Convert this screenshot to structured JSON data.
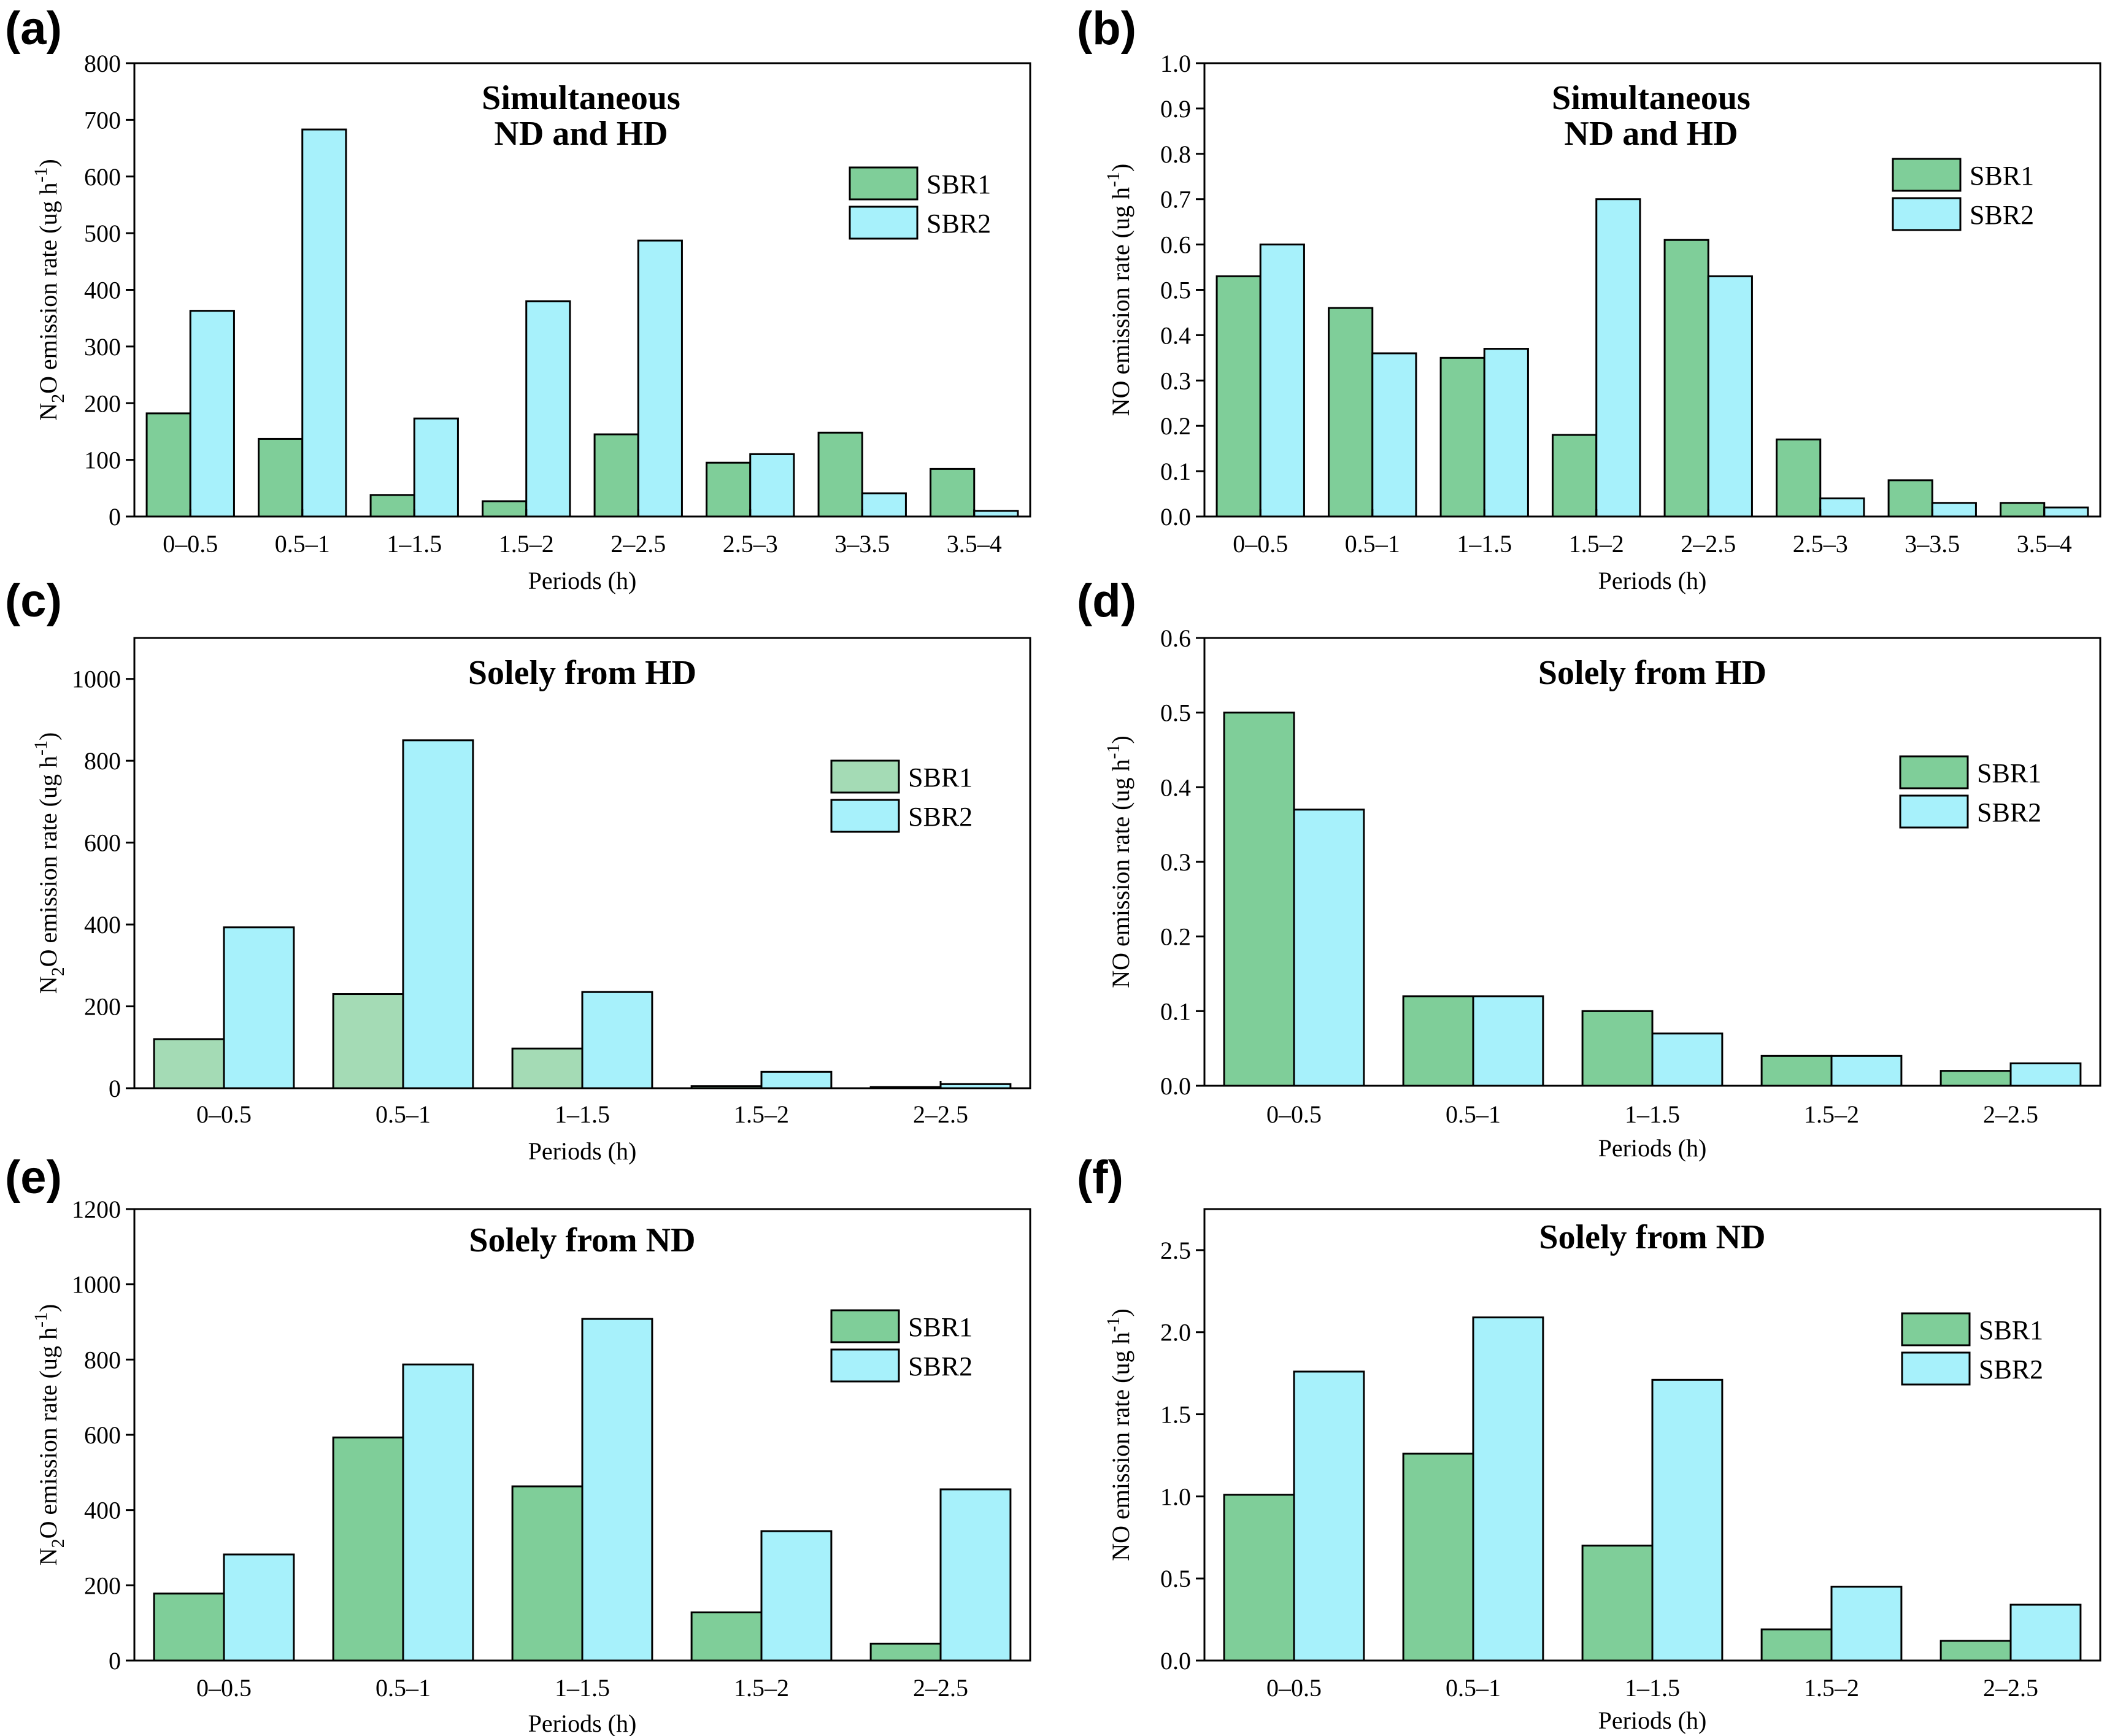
{
  "colors": {
    "SBR1": "#7fce99",
    "SBR2": "#a7f1fb",
    "SBR1_light": "#a4dbb5"
  },
  "legend": [
    "SBR1",
    "SBR2"
  ],
  "chart_data": [
    {
      "panel": "(a)",
      "type": "bar",
      "title": [
        "Simultaneous",
        "ND and HD"
      ],
      "xlabel": "Periods (h)",
      "ylabel_prefix": "N",
      "ylabel_sub": "2",
      "ylabel_mid": "O emission rate (ug h",
      "ylabel_sup": "-1",
      "ylabel_end": ")",
      "categories": [
        "0–0.5",
        "0.5–1",
        "1–1.5",
        "1.5–2",
        "2–2.5",
        "2.5–3",
        "3–3.5",
        "3.5–4"
      ],
      "ylim": [
        0,
        800
      ],
      "yticks": [
        "0",
        "100",
        "200",
        "300",
        "400",
        "500",
        "600",
        "700",
        "800"
      ],
      "series": [
        {
          "name": "SBR1",
          "values": [
            182,
            137,
            38,
            27,
            145,
            95,
            148,
            84
          ]
        },
        {
          "name": "SBR2",
          "values": [
            363,
            683,
            173,
            380,
            487,
            110,
            41,
            10
          ]
        }
      ]
    },
    {
      "panel": "(b)",
      "type": "bar",
      "title": [
        "Simultaneous",
        "ND and HD"
      ],
      "xlabel": "Periods (h)",
      "ylabel_prefix": "",
      "ylabel_sub": "",
      "ylabel_mid": "NO emission rate (ug h",
      "ylabel_sup": "-1",
      "ylabel_end": ")",
      "categories": [
        "0–0.5",
        "0.5–1",
        "1–1.5",
        "1.5–2",
        "2–2.5",
        "2.5–3",
        "3–3.5",
        "3.5–4"
      ],
      "ylim": [
        0,
        1.0
      ],
      "yticks": [
        "0.0",
        "0.1",
        "0.2",
        "0.3",
        "0.4",
        "0.5",
        "0.6",
        "0.7",
        "0.8",
        "0.9",
        "1.0"
      ],
      "series": [
        {
          "name": "SBR1",
          "values": [
            0.53,
            0.46,
            0.35,
            0.18,
            0.61,
            0.17,
            0.08,
            0.03
          ]
        },
        {
          "name": "SBR2",
          "values": [
            0.6,
            0.36,
            0.37,
            0.7,
            0.53,
            0.04,
            0.03,
            0.02
          ]
        }
      ]
    },
    {
      "panel": "(c)",
      "type": "bar",
      "title": [
        "Solely from HD"
      ],
      "xlabel": "Periods (h)",
      "ylabel_prefix": "N",
      "ylabel_sub": "2",
      "ylabel_mid": "O emission rate (ug h",
      "ylabel_sup": "-1",
      "ylabel_end": ")",
      "categories": [
        "0–0.5",
        "0.5–1",
        "1–1.5",
        "1.5–2",
        "2–2.5"
      ],
      "ylim": [
        0,
        1100
      ],
      "yticks": [
        "0",
        "200",
        "400",
        "600",
        "800",
        "1000"
      ],
      "ytick_values": [
        0,
        200,
        400,
        600,
        800,
        1000
      ],
      "series": [
        {
          "name": "SBR1",
          "values": [
            120,
            230,
            97,
            5,
            3
          ]
        },
        {
          "name": "SBR2",
          "values": [
            393,
            850,
            235,
            40,
            10
          ]
        }
      ]
    },
    {
      "panel": "(d)",
      "type": "bar",
      "title": [
        "Solely from HD"
      ],
      "xlabel": "Periods (h)",
      "ylabel_prefix": "",
      "ylabel_sub": "",
      "ylabel_mid": "NO emission rate (ug h",
      "ylabel_sup": "-1",
      "ylabel_end": ")",
      "categories": [
        "0–0.5",
        "0.5–1",
        "1–1.5",
        "1.5–2",
        "2–2.5"
      ],
      "ylim": [
        0,
        0.6
      ],
      "yticks": [
        "0.0",
        "0.1",
        "0.2",
        "0.3",
        "0.4",
        "0.5",
        "0.6"
      ],
      "series": [
        {
          "name": "SBR1",
          "values": [
            0.5,
            0.12,
            0.1,
            0.04,
            0.02
          ]
        },
        {
          "name": "SBR2",
          "values": [
            0.37,
            0.12,
            0.07,
            0.04,
            0.03
          ]
        }
      ]
    },
    {
      "panel": "(e)",
      "type": "bar",
      "title": [
        "Solely from ND"
      ],
      "xlabel": "Periods (h)",
      "ylabel_prefix": "N",
      "ylabel_sub": "2",
      "ylabel_mid": "O emission rate (ug h",
      "ylabel_sup": "-1",
      "ylabel_end": ")",
      "categories": [
        "0–0.5",
        "0.5–1",
        "1–1.5",
        "1.5–2",
        "2–2.5"
      ],
      "ylim": [
        0,
        1200
      ],
      "yticks": [
        "0",
        "200",
        "400",
        "600",
        "800",
        "1000",
        "1200"
      ],
      "series": [
        {
          "name": "SBR1",
          "values": [
            178,
            593,
            463,
            128,
            45
          ]
        },
        {
          "name": "SBR2",
          "values": [
            282,
            787,
            908,
            344,
            455
          ]
        }
      ]
    },
    {
      "panel": "(f)",
      "type": "bar",
      "title": [
        "Solely from ND"
      ],
      "xlabel": "Periods (h)",
      "ylabel_prefix": "",
      "ylabel_sub": "",
      "ylabel_mid": "NO emission rate (ug h",
      "ylabel_sup": "-1",
      "ylabel_end": ")",
      "categories": [
        "0–0.5",
        "0.5–1",
        "1–1.5",
        "1.5–2",
        "2–2.5"
      ],
      "ylim": [
        0,
        2.75
      ],
      "yticks": [
        "0.0",
        "0.5",
        "1.0",
        "1.5",
        "2.0",
        "2.5"
      ],
      "ytick_values": [
        0,
        0.5,
        1.0,
        1.5,
        2.0,
        2.5
      ],
      "series": [
        {
          "name": "SBR1",
          "values": [
            1.01,
            1.26,
            0.7,
            0.19,
            0.12
          ]
        },
        {
          "name": "SBR2",
          "values": [
            1.76,
            2.09,
            1.71,
            0.45,
            0.34
          ]
        }
      ]
    }
  ]
}
